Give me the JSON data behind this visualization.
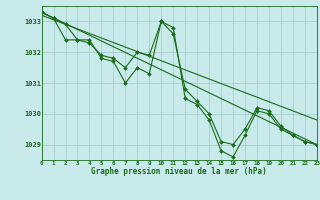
{
  "title": "Graphe pression niveau de la mer (hPa)",
  "bg_color": "#c8eaea",
  "grid_color": "#a0c8c8",
  "line_color": "#1a6b1a",
  "xlim": [
    0,
    23
  ],
  "ylim": [
    1028.5,
    1033.5
  ],
  "yticks": [
    1029,
    1030,
    1031,
    1032,
    1033
  ],
  "xticks": [
    0,
    1,
    2,
    3,
    4,
    5,
    6,
    7,
    8,
    9,
    10,
    11,
    12,
    13,
    14,
    15,
    16,
    17,
    18,
    19,
    20,
    21,
    22,
    23
  ],
  "series": [
    {
      "x": [
        0,
        1,
        2,
        3,
        4,
        5,
        6,
        7,
        8,
        9,
        10,
        11,
        12,
        13,
        14,
        15,
        16,
        17,
        18,
        19,
        20,
        21,
        22,
        23
      ],
      "y": [
        1033.3,
        1033.1,
        1032.9,
        1032.4,
        1032.4,
        1031.8,
        1031.7,
        1031.0,
        1031.5,
        1031.3,
        1033.0,
        1032.8,
        1030.5,
        1030.3,
        1029.8,
        1028.8,
        1028.6,
        1029.3,
        1030.1,
        1030.0,
        1029.5,
        1029.3,
        1029.1,
        1029.0
      ],
      "marker": "D",
      "markersize": 2,
      "linewidth": 0.8,
      "has_marker": true
    },
    {
      "x": [
        0,
        1,
        2,
        3,
        4,
        5,
        6,
        7,
        8,
        9,
        10,
        11,
        12,
        13,
        14,
        15,
        16,
        17,
        18,
        19,
        20,
        21,
        22,
        23
      ],
      "y": [
        1033.3,
        1033.1,
        1032.4,
        1032.4,
        1032.3,
        1031.9,
        1031.8,
        1031.5,
        1032.0,
        1031.9,
        1033.0,
        1032.6,
        1030.8,
        1030.4,
        1030.0,
        1029.1,
        1029.0,
        1029.5,
        1030.2,
        1030.1,
        1029.6,
        1029.3,
        1029.1,
        1029.0
      ],
      "marker": "D",
      "markersize": 2,
      "linewidth": 0.8,
      "has_marker": true
    },
    {
      "x": [
        0,
        23
      ],
      "y": [
        1033.3,
        1029.0
      ],
      "marker": null,
      "markersize": 0,
      "linewidth": 0.8,
      "has_marker": false
    },
    {
      "x": [
        0,
        23
      ],
      "y": [
        1033.2,
        1029.8
      ],
      "marker": null,
      "markersize": 0,
      "linewidth": 0.8,
      "has_marker": false
    }
  ]
}
